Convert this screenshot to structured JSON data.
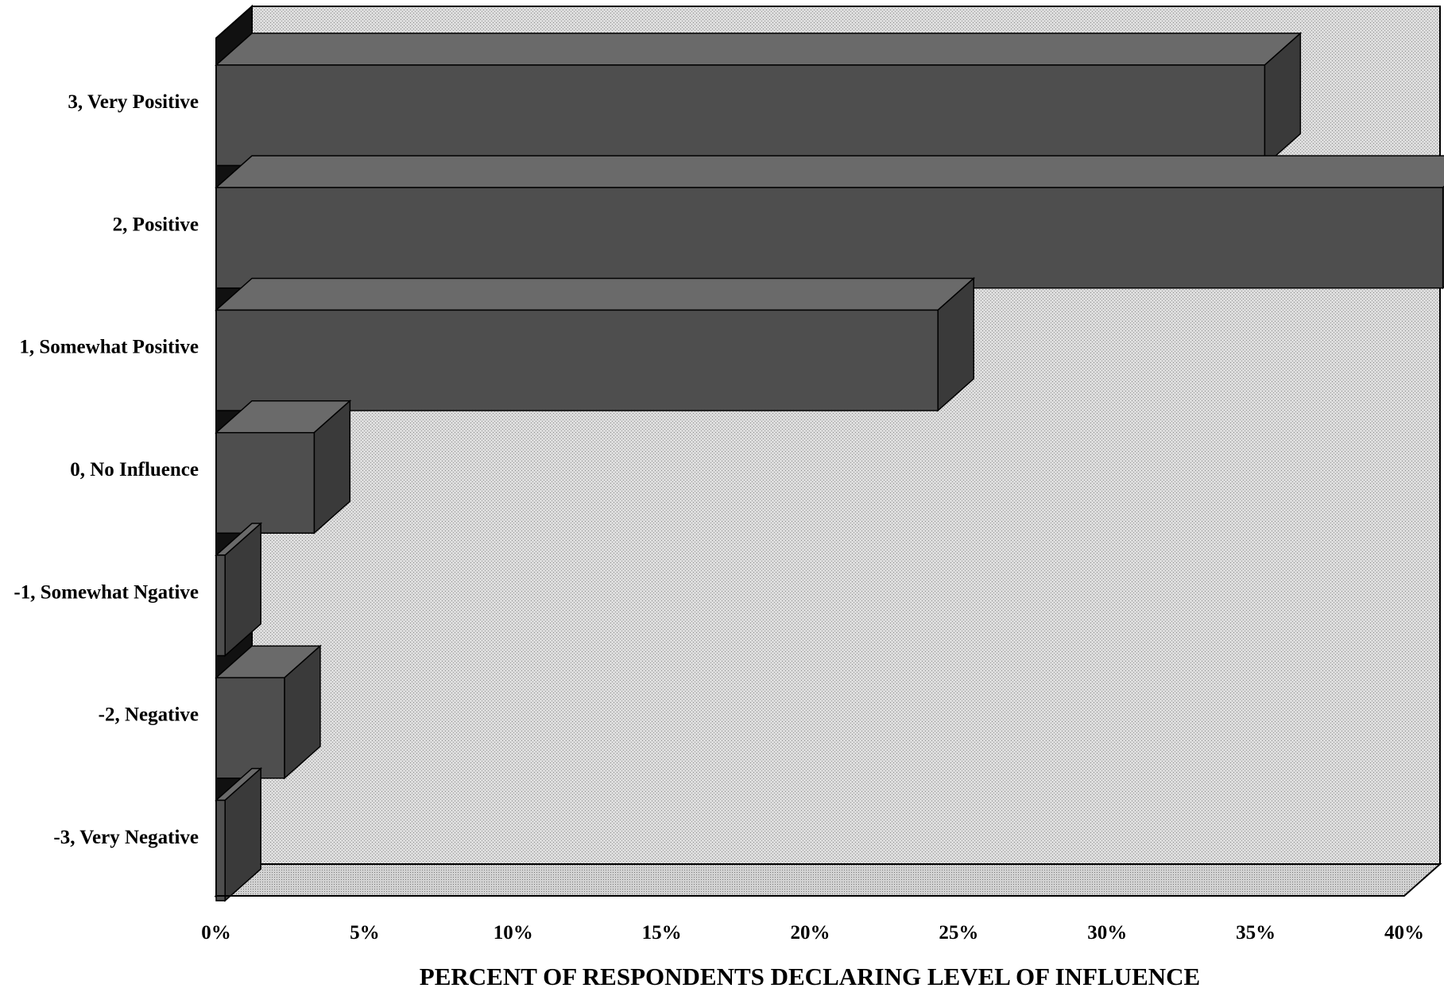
{
  "chart_data": {
    "type": "bar",
    "orientation": "horizontal",
    "style": "3d",
    "categories": [
      "3, Very Positive",
      "2, Positive",
      "1, Somewhat Positive",
      "0, No Influence",
      "-1, Somewhat Ngative",
      "-2, Negative",
      "-3, Very Negative"
    ],
    "values": [
      35.3,
      41.3,
      24.3,
      3.3,
      0.3,
      2.3,
      0.3
    ],
    "xlabel": "PERCENT OF RESPONDENTS DECLARING LEVEL OF INFLUENCE",
    "ylabel": "",
    "xlim": [
      0,
      40
    ],
    "x_ticks": [
      "0%",
      "5%",
      "10%",
      "15%",
      "20%",
      "25%",
      "30%",
      "35%",
      "40%"
    ],
    "grid": false,
    "legend": "none",
    "colors": {
      "bar_face": "#4e4e4e",
      "bar_top": "#6a6a6a",
      "bar_side": "#3a3a3a",
      "back_wall": "#d4d4d4",
      "floor": "#c4c4c4",
      "side_wall": "#111111"
    }
  }
}
